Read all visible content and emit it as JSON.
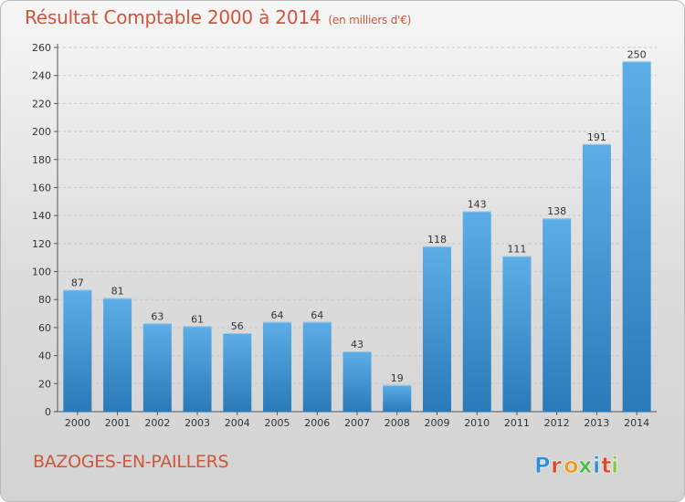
{
  "header": {
    "title": "Résultat Comptable 2000 à 2014",
    "subtitle": "(en milliers d'€)"
  },
  "footer": {
    "place": "BAZOGES-EN-PAILLERS",
    "brand": "Proxiti",
    "brand_colors": [
      "#2f8fd8",
      "#e2452f",
      "#f29a1f",
      "#4db848",
      "#2f8fd8",
      "#e2452f",
      "#8bc53f"
    ]
  },
  "colors": {
    "bar_light": "#5dade6",
    "bar_dark": "#2a7ab9",
    "accent": "#d2543a",
    "grid": "#c8c8c8"
  },
  "chart_data": {
    "type": "bar",
    "title": "Résultat Comptable 2000 à 2014",
    "subtitle": "(en milliers d'€)",
    "categories": [
      "2000",
      "2001",
      "2002",
      "2003",
      "2004",
      "2005",
      "2006",
      "2007",
      "2008",
      "2009",
      "2010",
      "2011",
      "2012",
      "2013",
      "2014"
    ],
    "values": [
      87,
      81,
      63,
      61,
      56,
      64,
      64,
      43,
      19,
      118,
      143,
      111,
      138,
      191,
      250
    ],
    "ylim": [
      0,
      260
    ],
    "yticks": [
      0,
      20,
      40,
      60,
      80,
      100,
      120,
      140,
      160,
      180,
      200,
      220,
      240,
      260
    ],
    "grid": true,
    "data_labels": true,
    "xlabel": "",
    "ylabel": ""
  }
}
